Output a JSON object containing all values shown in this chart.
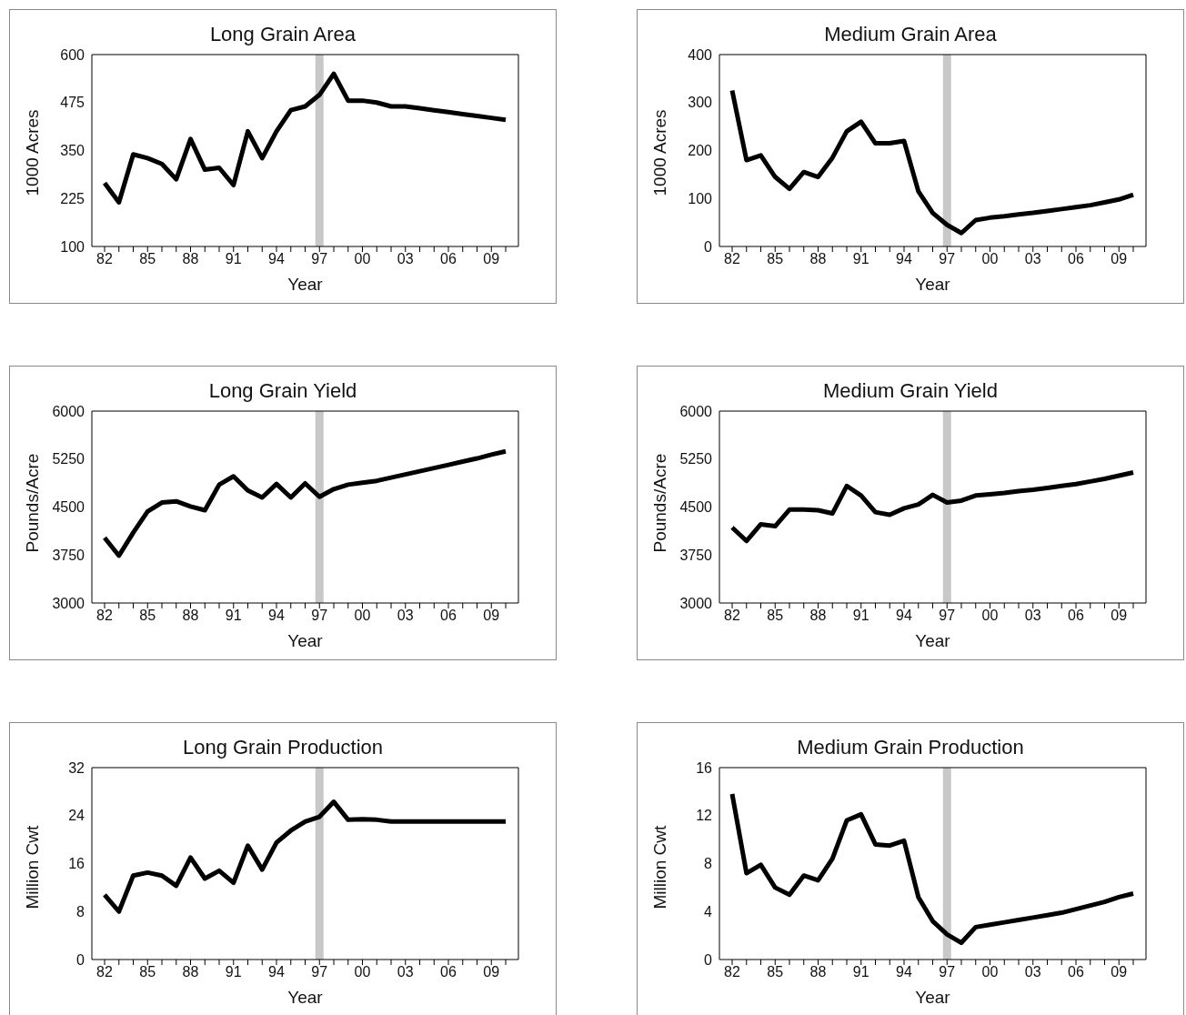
{
  "chart_data": [
    {
      "type": "line",
      "title": "Long Grain Area",
      "xlabel": "Year",
      "ylabel": "1000 Acres",
      "categories": [
        "82",
        null,
        null,
        "85",
        null,
        null,
        "88",
        null,
        null,
        "91",
        null,
        null,
        "94",
        null,
        null,
        "97",
        null,
        null,
        "00",
        null,
        null,
        "03",
        null,
        null,
        "06",
        null,
        null,
        "09",
        null
      ],
      "ylim": [
        100,
        600
      ],
      "yticks": [
        100,
        225,
        350,
        475,
        600
      ],
      "marker": "none",
      "legend": false,
      "ref_lines": [
        {
          "axis": "x",
          "value": "97",
          "color": "#c8c8c8"
        }
      ],
      "series": [
        {
          "color": "#000000",
          "values": [
            265,
            215,
            340,
            330,
            315,
            275,
            380,
            300,
            305,
            260,
            400,
            330,
            400,
            455,
            465,
            495,
            550,
            480,
            480,
            475,
            465,
            465,
            460,
            455,
            450,
            445,
            440,
            435,
            430
          ]
        }
      ]
    },
    {
      "type": "line",
      "title": "Medium Grain Area",
      "xlabel": "Year",
      "ylabel": "1000 Acres",
      "categories": [
        "82",
        null,
        null,
        "85",
        null,
        null,
        "88",
        null,
        null,
        "91",
        null,
        null,
        "94",
        null,
        null,
        "97",
        null,
        null,
        "00",
        null,
        null,
        "03",
        null,
        null,
        "06",
        null,
        null,
        "09",
        null
      ],
      "ylim": [
        0,
        400
      ],
      "yticks": [
        0,
        100,
        200,
        300,
        400
      ],
      "marker": "none",
      "legend": false,
      "ref_lines": [
        {
          "axis": "x",
          "value": "97",
          "color": "#c8c8c8"
        }
      ],
      "series": [
        {
          "color": "#000000",
          "values": [
            325,
            180,
            190,
            145,
            120,
            155,
            145,
            185,
            240,
            260,
            215,
            215,
            220,
            115,
            70,
            45,
            28,
            55,
            60,
            63,
            67,
            70,
            74,
            78,
            82,
            86,
            92,
            98,
            108
          ]
        }
      ]
    },
    {
      "type": "line",
      "title": "Long Grain Yield",
      "xlabel": "Year",
      "ylabel": "Pounds/Acre",
      "categories": [
        "82",
        null,
        null,
        "85",
        null,
        null,
        "88",
        null,
        null,
        "91",
        null,
        null,
        "94",
        null,
        null,
        "97",
        null,
        null,
        "00",
        null,
        null,
        "03",
        null,
        null,
        "06",
        null,
        null,
        "09",
        null
      ],
      "ylim": [
        3000,
        6000
      ],
      "yticks": [
        3000,
        3750,
        4500,
        5250,
        6000
      ],
      "marker": "none",
      "legend": false,
      "ref_lines": [
        {
          "axis": "x",
          "value": "97",
          "color": "#c8c8c8"
        }
      ],
      "series": [
        {
          "color": "#000000",
          "values": [
            4020,
            3740,
            4100,
            4430,
            4570,
            4590,
            4510,
            4450,
            4850,
            4980,
            4760,
            4650,
            4860,
            4650,
            4870,
            4660,
            4780,
            4850,
            4880,
            4910,
            4960,
            5010,
            5060,
            5110,
            5160,
            5210,
            5260,
            5320,
            5370
          ]
        }
      ]
    },
    {
      "type": "line",
      "title": "Medium Grain Yield",
      "xlabel": "Year",
      "ylabel": "Pounds/Acre",
      "categories": [
        "82",
        null,
        null,
        "85",
        null,
        null,
        "88",
        null,
        null,
        "91",
        null,
        null,
        "94",
        null,
        null,
        "97",
        null,
        null,
        "00",
        null,
        null,
        "03",
        null,
        null,
        "06",
        null,
        null,
        "09",
        null
      ],
      "ylim": [
        3000,
        6000
      ],
      "yticks": [
        3000,
        3750,
        4500,
        5250,
        6000
      ],
      "marker": "none",
      "legend": false,
      "ref_lines": [
        {
          "axis": "x",
          "value": "97",
          "color": "#c8c8c8"
        }
      ],
      "series": [
        {
          "color": "#000000",
          "values": [
            4180,
            3970,
            4230,
            4200,
            4460,
            4460,
            4450,
            4400,
            4830,
            4680,
            4420,
            4380,
            4480,
            4540,
            4690,
            4570,
            4600,
            4680,
            4700,
            4720,
            4750,
            4770,
            4800,
            4830,
            4860,
            4900,
            4940,
            4990,
            5040
          ]
        }
      ]
    },
    {
      "type": "line",
      "title": "Long Grain Production",
      "xlabel": "Year",
      "ylabel": "Million Cwt",
      "categories": [
        "82",
        null,
        null,
        "85",
        null,
        null,
        "88",
        null,
        null,
        "91",
        null,
        null,
        "94",
        null,
        null,
        "97",
        null,
        null,
        "00",
        null,
        null,
        "03",
        null,
        null,
        "06",
        null,
        null,
        "09",
        null
      ],
      "ylim": [
        0,
        32
      ],
      "yticks": [
        0,
        8,
        16,
        24,
        32
      ],
      "marker": "none",
      "legend": false,
      "ref_lines": [
        {
          "axis": "x",
          "value": "97",
          "color": "#c8c8c8"
        }
      ],
      "series": [
        {
          "color": "#000000",
          "values": [
            10.8,
            8,
            14,
            14.5,
            14,
            12.3,
            17,
            13.5,
            14.8,
            12.8,
            19,
            15,
            19.5,
            21.5,
            23,
            23.8,
            26.3,
            23.3,
            23.4,
            23.3,
            23,
            23,
            23,
            23,
            23,
            23,
            23,
            23,
            23
          ]
        }
      ]
    },
    {
      "type": "line",
      "title": "Medium Grain Production",
      "xlabel": "Year",
      "ylabel": "Million Cwt",
      "categories": [
        "82",
        null,
        null,
        "85",
        null,
        null,
        "88",
        null,
        null,
        "91",
        null,
        null,
        "94",
        null,
        null,
        "97",
        null,
        null,
        "00",
        null,
        null,
        "03",
        null,
        null,
        "06",
        null,
        null,
        "09",
        null
      ],
      "ylim": [
        0,
        16
      ],
      "yticks": [
        0,
        4,
        8,
        12,
        16
      ],
      "marker": "none",
      "legend": false,
      "ref_lines": [
        {
          "axis": "x",
          "value": "97",
          "color": "#c8c8c8"
        }
      ],
      "series": [
        {
          "color": "#000000",
          "values": [
            13.8,
            7.2,
            7.9,
            6,
            5.4,
            7,
            6.6,
            8.4,
            11.6,
            12.1,
            9.6,
            9.5,
            9.9,
            5.2,
            3.2,
            2.1,
            1.4,
            2.7,
            2.9,
            3.1,
            3.3,
            3.5,
            3.7,
            3.9,
            4.2,
            4.5,
            4.8,
            5.2,
            5.5
          ]
        }
      ]
    }
  ]
}
